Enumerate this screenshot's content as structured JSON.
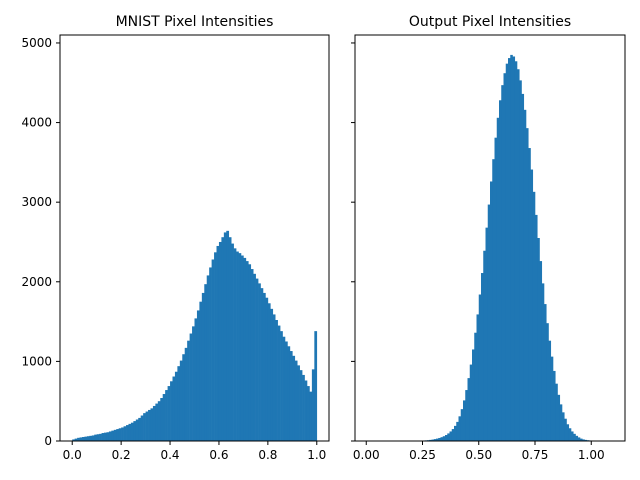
{
  "chart_data": [
    {
      "type": "bar",
      "title": "MNIST Pixel Intensities",
      "xlabel": "",
      "ylabel": "",
      "xlim": [
        -0.05,
        1.05
      ],
      "ylim": [
        0,
        5100
      ],
      "bin_width": 0.01,
      "xticks": [
        0.0,
        0.2,
        0.4,
        0.6,
        0.8,
        1.0
      ],
      "xtick_labels": [
        "0.0",
        "0.2",
        "0.4",
        "0.6",
        "0.8",
        "1.0"
      ],
      "yticks": [
        0,
        1000,
        2000,
        3000,
        4000,
        5000
      ],
      "ytick_labels": [
        "0",
        "1000",
        "2000",
        "3000",
        "4000",
        "5000"
      ],
      "grid": false,
      "color": "#1f77b4",
      "bins_x": [
        0.0,
        0.01,
        0.02,
        0.03,
        0.04,
        0.05,
        0.06,
        0.07,
        0.08,
        0.09,
        0.1,
        0.11,
        0.12,
        0.13,
        0.14,
        0.15,
        0.16,
        0.17,
        0.18,
        0.19,
        0.2,
        0.21,
        0.22,
        0.23,
        0.24,
        0.25,
        0.26,
        0.27,
        0.28,
        0.29,
        0.3,
        0.31,
        0.32,
        0.33,
        0.34,
        0.35,
        0.36,
        0.37,
        0.38,
        0.39,
        0.4,
        0.41,
        0.42,
        0.43,
        0.44,
        0.45,
        0.46,
        0.47,
        0.48,
        0.49,
        0.5,
        0.51,
        0.52,
        0.53,
        0.54,
        0.55,
        0.56,
        0.57,
        0.58,
        0.59,
        0.6,
        0.61,
        0.62,
        0.63,
        0.64,
        0.65,
        0.66,
        0.67,
        0.68,
        0.69,
        0.7,
        0.71,
        0.72,
        0.73,
        0.74,
        0.75,
        0.76,
        0.77,
        0.78,
        0.79,
        0.8,
        0.81,
        0.82,
        0.83,
        0.84,
        0.85,
        0.86,
        0.87,
        0.88,
        0.89,
        0.9,
        0.91,
        0.92,
        0.93,
        0.94,
        0.95,
        0.96,
        0.97,
        0.98,
        0.99
      ],
      "values": [
        20,
        30,
        40,
        45,
        50,
        55,
        60,
        65,
        70,
        80,
        85,
        90,
        100,
        105,
        110,
        120,
        130,
        140,
        150,
        160,
        170,
        185,
        200,
        215,
        230,
        250,
        270,
        290,
        320,
        350,
        370,
        390,
        410,
        440,
        470,
        500,
        540,
        590,
        640,
        690,
        750,
        810,
        870,
        940,
        1010,
        1090,
        1170,
        1260,
        1350,
        1440,
        1540,
        1640,
        1750,
        1860,
        1970,
        2080,
        2180,
        2280,
        2370,
        2450,
        2500,
        2560,
        2620,
        2640,
        2560,
        2480,
        2420,
        2380,
        2360,
        2330,
        2300,
        2260,
        2220,
        2160,
        2100,
        2040,
        1980,
        1920,
        1860,
        1800,
        1730,
        1660,
        1590,
        1520,
        1450,
        1380,
        1310,
        1250,
        1190,
        1130,
        1070,
        1010,
        950,
        890,
        830,
        760,
        690,
        620,
        900,
        1380
      ]
    },
    {
      "type": "bar",
      "title": "Output Pixel Intensities",
      "xlabel": "",
      "ylabel": "",
      "xlim": [
        -0.05,
        1.15
      ],
      "ylim": [
        0,
        5100
      ],
      "bin_width": 0.01,
      "xticks": [
        0.0,
        0.25,
        0.5,
        0.75,
        1.0
      ],
      "xtick_labels": [
        "0.00",
        "0.25",
        "0.50",
        "0.75",
        "1.00"
      ],
      "yticks": [
        0,
        1000,
        2000,
        3000,
        4000,
        5000
      ],
      "ytick_labels": [
        "",
        "",
        "",
        "",
        "",
        ""
      ],
      "grid": false,
      "color": "#1f77b4",
      "bins_x": [
        0.25,
        0.26,
        0.27,
        0.28,
        0.29,
        0.3,
        0.31,
        0.32,
        0.33,
        0.34,
        0.35,
        0.36,
        0.37,
        0.38,
        0.39,
        0.4,
        0.41,
        0.42,
        0.43,
        0.44,
        0.45,
        0.46,
        0.47,
        0.48,
        0.49,
        0.5,
        0.51,
        0.52,
        0.53,
        0.54,
        0.55,
        0.56,
        0.57,
        0.58,
        0.59,
        0.6,
        0.61,
        0.62,
        0.63,
        0.64,
        0.65,
        0.66,
        0.67,
        0.68,
        0.69,
        0.7,
        0.71,
        0.72,
        0.73,
        0.74,
        0.75,
        0.76,
        0.77,
        0.78,
        0.79,
        0.8,
        0.81,
        0.82,
        0.83,
        0.84,
        0.85,
        0.86,
        0.87,
        0.88,
        0.89,
        0.9,
        0.91,
        0.92,
        0.93,
        0.94,
        0.95,
        0.96,
        0.97,
        0.98,
        0.99,
        1.0,
        1.01,
        1.02,
        1.03,
        1.04,
        1.05
      ],
      "values": [
        5,
        8,
        10,
        14,
        18,
        24,
        30,
        38,
        48,
        60,
        75,
        95,
        120,
        150,
        190,
        240,
        310,
        400,
        510,
        640,
        790,
        960,
        1150,
        1360,
        1590,
        1840,
        2110,
        2390,
        2680,
        2970,
        3260,
        3540,
        3810,
        4060,
        4280,
        4470,
        4620,
        4740,
        4810,
        4850,
        4830,
        4770,
        4670,
        4530,
        4360,
        4160,
        3930,
        3680,
        3410,
        3130,
        2840,
        2550,
        2260,
        1980,
        1720,
        1480,
        1260,
        1060,
        880,
        720,
        580,
        460,
        360,
        280,
        210,
        160,
        120,
        90,
        65,
        45,
        30,
        20,
        14,
        10,
        7,
        5,
        3,
        2,
        1,
        1,
        1
      ]
    }
  ]
}
